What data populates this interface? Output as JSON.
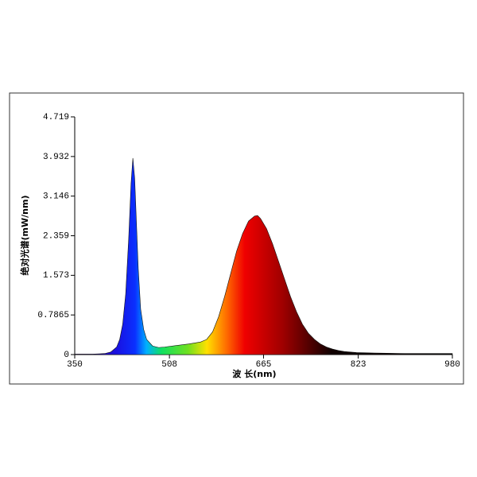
{
  "chart_data": {
    "type": "area",
    "xlabel": "波 长(nm)",
    "ylabel": "绝对光谱(mW/nm)",
    "x": [
      350,
      380,
      400,
      410,
      420,
      425,
      430,
      435,
      440,
      444,
      447,
      450,
      453,
      456,
      460,
      465,
      470,
      480,
      490,
      500,
      520,
      540,
      560,
      570,
      580,
      590,
      600,
      610,
      620,
      630,
      640,
      650,
      655,
      660,
      670,
      680,
      690,
      700,
      710,
      720,
      730,
      740,
      750,
      760,
      770,
      780,
      790,
      800,
      820,
      850,
      900,
      950,
      980
    ],
    "values": [
      0.01,
      0.01,
      0.02,
      0.05,
      0.15,
      0.3,
      0.6,
      1.2,
      2.3,
      3.4,
      3.9,
      3.5,
      2.6,
      1.7,
      0.9,
      0.5,
      0.3,
      0.17,
      0.14,
      0.15,
      0.18,
      0.21,
      0.25,
      0.3,
      0.45,
      0.75,
      1.15,
      1.6,
      2.05,
      2.4,
      2.65,
      2.75,
      2.76,
      2.7,
      2.5,
      2.2,
      1.85,
      1.5,
      1.15,
      0.85,
      0.6,
      0.42,
      0.3,
      0.21,
      0.15,
      0.11,
      0.08,
      0.06,
      0.04,
      0.03,
      0.02,
      0.02,
      0.02
    ],
    "xlim": [
      350,
      980
    ],
    "xticks": [
      350,
      508,
      665,
      823,
      980
    ],
    "ylim": [
      0,
      4.719
    ],
    "yticks": [
      0,
      0.7865,
      1.573,
      2.359,
      3.146,
      3.932,
      4.719
    ]
  }
}
